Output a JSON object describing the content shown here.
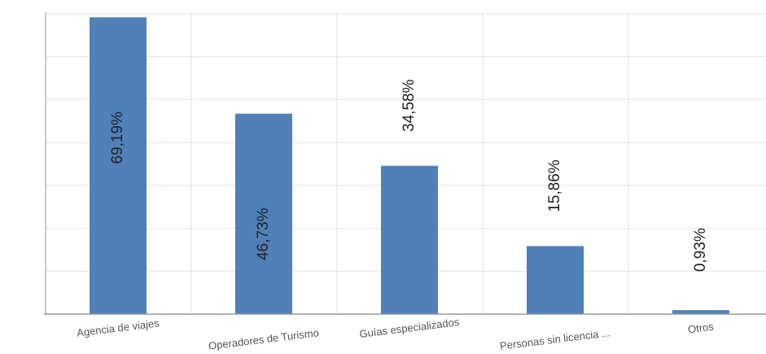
{
  "chart_data": {
    "type": "bar",
    "categories": [
      "Agencia de viajes",
      "Operadores de Turismo",
      "Guías especializados",
      "Personas sin licencia ...",
      "Otros"
    ],
    "values": [
      69.19,
      46.73,
      34.58,
      15.86,
      0.93
    ],
    "data_labels": [
      "69,19%",
      "46,73%",
      "34,58%",
      "15,86%",
      "0,93%"
    ],
    "ylim": [
      0,
      70
    ],
    "grid": true,
    "bar_color": "#4f81b8",
    "grid_color": "#e2e2e2",
    "axis_color": "#9a9a9a",
    "label_color": "#222222",
    "tick_label_color": "#555555"
  }
}
